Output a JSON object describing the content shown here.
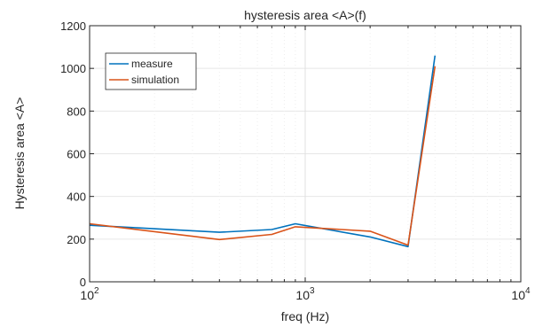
{
  "chart_data": {
    "type": "line",
    "title": "hysteresis area <A>(f)",
    "xlabel": "freq (Hz)",
    "ylabel": "Hysteresis area <A>",
    "xscale": "log",
    "xlim": [
      100,
      10000
    ],
    "ylim": [
      0,
      1200
    ],
    "xticks": [
      {
        "value": 100,
        "base": "10",
        "exp": "2"
      },
      {
        "value": 1000,
        "base": "10",
        "exp": "3"
      },
      {
        "value": 10000,
        "base": "10",
        "exp": "4"
      }
    ],
    "yticks": [
      0,
      200,
      400,
      600,
      800,
      1000,
      1200
    ],
    "grid": true,
    "legend_position": "top-left",
    "series": [
      {
        "name": "measure",
        "color": "#0072BD",
        "x": [
          100,
          400,
          700,
          900,
          2000,
          3000,
          4000
        ],
        "y": [
          265,
          232,
          245,
          272,
          210,
          165,
          1060
        ]
      },
      {
        "name": "simulation",
        "color": "#D95319",
        "x": [
          100,
          400,
          700,
          900,
          2000,
          3000,
          4000
        ],
        "y": [
          272,
          198,
          222,
          258,
          237,
          172,
          1010
        ]
      }
    ]
  }
}
